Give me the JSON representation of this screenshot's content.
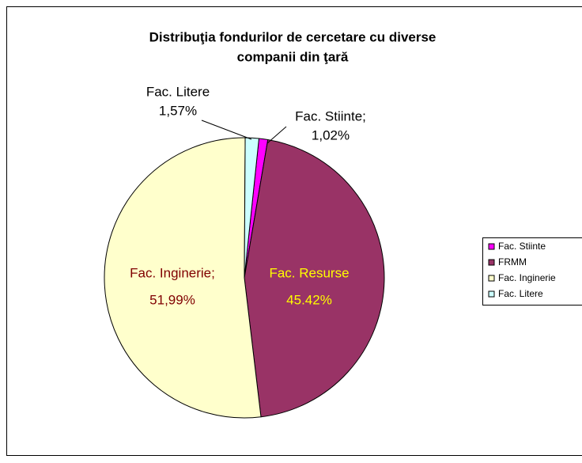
{
  "chart_data": {
    "type": "pie",
    "title": [
      "Distribuţia fondurilor de cercetare cu diverse",
      "companii din ţară"
    ],
    "categories": [
      "Fac. Stiinte",
      "FRMM",
      "Fac. Inginerie",
      "Fac. Litere"
    ],
    "values": [
      1.02,
      45.42,
      51.99,
      1.57
    ],
    "value_labels": [
      "1,02%",
      "45.42%",
      "51,99%",
      "1,57%"
    ],
    "label_names": [
      "Fac. Stiinte;",
      "Fac. Resurse",
      "Fac. Inginerie;",
      "Fac. Litere"
    ],
    "colors": [
      "#ff00ff",
      "#993366",
      "#ffffcc",
      "#ccffff"
    ],
    "label_colors": [
      "#000000",
      "#ffff00",
      "#800000",
      "#000000"
    ],
    "legend": "right"
  }
}
